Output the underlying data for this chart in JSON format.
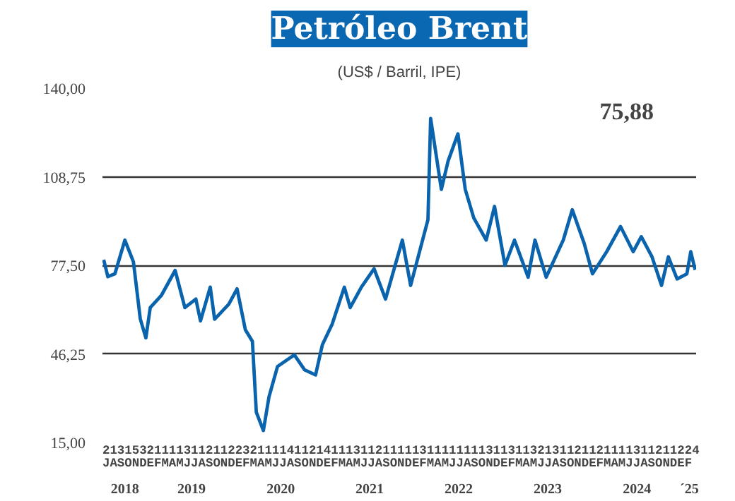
{
  "chart_data": {
    "type": "line",
    "title": "Petróleo Brent",
    "subtitle": "(US$ / Barril, IPE)",
    "annotations": [
      "75,88",
      "213153211113112112232111141121411131121111131111111131131132131121121111311211224",
      "JASONDEFMAMJJASONDEFMAMJJASONDEFMAMJJASONDEFMAMJJASONDEFMAMJJASONDEFMAMJJASONDEF"
    ],
    "x": [
      "2018-07-06",
      "2018-07-23",
      "2018-08-21",
      "2018-10-01",
      "2018-11-05",
      "2018-12-03",
      "2018-12-26",
      "2019-01-13",
      "2019-02-27",
      "2019-04-25",
      "2019-06-04",
      "2019-07-19",
      "2019-08-07",
      "2019-09-16",
      "2019-10-04",
      "2019-12-01",
      "2020-01-04",
      "2020-02-07",
      "2020-03-07",
      "2020-03-23",
      "2020-04-21",
      "2020-05-14",
      "2020-06-18",
      "2020-08-26",
      "2020-10-07",
      "2020-11-21",
      "2020-12-19",
      "2021-01-28",
      "2021-03-19",
      "2021-04-12",
      "2021-05-28",
      "2021-07-19",
      "2021-09-04",
      "2021-11-12",
      "2021-12-16",
      "2022-02-25",
      "2022-03-08",
      "2022-04-21",
      "2022-05-19",
      "2022-06-28",
      "2022-07-28",
      "2022-09-01",
      "2022-10-22",
      "2022-11-25",
      "2023-01-07",
      "2023-02-15",
      "2023-04-12",
      "2023-05-10",
      "2023-06-25",
      "2023-09-03",
      "2023-10-10",
      "2023-11-28",
      "2024-01-01",
      "2024-02-28",
      "2024-04-25",
      "2024-06-16",
      "2024-07-19",
      "2024-09-01",
      "2024-10-10",
      "2024-11-07",
      "2024-12-13",
      "2025-01-22",
      "2025-02-07",
      "2025-02-25"
    ],
    "series": [
      {
        "color": "#0a63ad",
        "values": [
          79.5,
          73.5,
          74.5,
          86.4,
          78.7,
          58.6,
          51.9,
          62.6,
          66.8,
          75.7,
          62.6,
          65.6,
          57.9,
          69.8,
          58.5,
          63.8,
          69.2,
          54.8,
          50.7,
          25.7,
          19.2,
          31.1,
          41.8,
          45.9,
          40.6,
          38.8,
          49.5,
          56.7,
          69.8,
          62.6,
          69.8,
          76.3,
          65.6,
          86.4,
          70.4,
          93.6,
          129.3,
          104.3,
          114.4,
          123.9,
          104.3,
          94.2,
          86.4,
          98.3,
          77.5,
          86.4,
          73.3,
          86.4,
          73.3,
          86.4,
          97.1,
          85.2,
          74.5,
          82.3,
          91.2,
          82.3,
          87.6,
          80.5,
          70.4,
          80.5,
          72.7,
          74.5,
          82.3,
          75.9
        ]
      }
    ],
    "xlim": [
      "2018-07-01",
      "2025-03-01"
    ],
    "xticks": [
      {
        "value": "2018-10-01",
        "label": "2018"
      },
      {
        "value": "2019-07-01",
        "label": "2019"
      },
      {
        "value": "2020-07-01",
        "label": "2020"
      },
      {
        "value": "2021-07-01",
        "label": "2021"
      },
      {
        "value": "2022-07-01",
        "label": "2022"
      },
      {
        "value": "2023-07-01",
        "label": "2023"
      },
      {
        "value": "2024-07-01",
        "label": "2024"
      },
      {
        "value": "2025-02-01",
        "label": "´25"
      }
    ],
    "ylim": [
      15,
      140
    ],
    "yticks": [
      {
        "value": 15,
        "label": "15,00"
      },
      {
        "value": 46.25,
        "label": "46,25"
      },
      {
        "value": 77.5,
        "label": "77,50"
      },
      {
        "value": 108.75,
        "label": "108,75"
      },
      {
        "value": 140,
        "label": "140,00"
      }
    ],
    "grid": "y",
    "marker": "none",
    "line_style": "solid"
  }
}
